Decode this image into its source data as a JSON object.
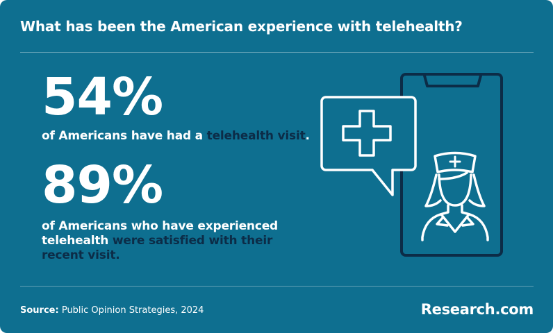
{
  "title": "What has been the American experience with telehealth?",
  "stats": [
    {
      "value": "54%",
      "text_before": "of Americans have had a ",
      "text_highlight": "telehealth visit",
      "text_after": "."
    },
    {
      "value": "89%",
      "text_before": "of Americans who have experienced telehealth ",
      "text_highlight": "were satisfied with their recent visit."
    }
  ],
  "illustration": {
    "icons": [
      "phone-icon",
      "medical-cross-speech-bubble-icon",
      "nurse-icon"
    ]
  },
  "footer": {
    "source_label": "Source:",
    "source_text": "Public Opinion Strategies, 2024",
    "brand": "Research.com"
  },
  "colors": {
    "background": "#0e6f90",
    "text": "#ffffff",
    "highlight": "#0c2c47"
  }
}
